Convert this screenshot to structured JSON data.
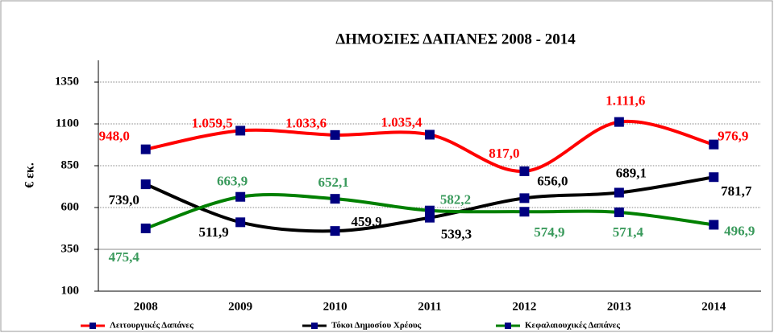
{
  "chart_data": {
    "type": "line",
    "title": "ΔΗΜΟΣΙΕΣ ΔΑΠΑΝΕΣ  2008 - 2014",
    "y_label": "€ εκ.",
    "categories": [
      "2008",
      "2009",
      "2010",
      "2011",
      "2012",
      "2013",
      "2014"
    ],
    "series": [
      {
        "name": "Λειτουργικές Δαπάνες",
        "color": "#ff0000",
        "label_color": "#ff0000",
        "values": [
          948.0,
          1059.5,
          1033.6,
          1035.4,
          817.0,
          1111.6,
          976.9
        ],
        "value_labels": [
          "948,0",
          "1.059,5",
          "1.033,6",
          "1.035,4",
          "817,0",
          "1.111,6",
          "976,9"
        ]
      },
      {
        "name": "Τόκοι Δημοσίου Χρέους",
        "color": "#000000",
        "label_color": "#000000",
        "values": [
          739.0,
          511.9,
          459.9,
          539.3,
          656.0,
          689.1,
          781.7
        ],
        "value_labels": [
          "739,0",
          "511,9",
          "459,9",
          "539,3",
          "656,0",
          "689,1",
          "781,7"
        ]
      },
      {
        "name": "Κεφαλαιουχικές Δαπάνες",
        "color": "#008000",
        "label_color": "#3a9a5c",
        "values": [
          475.4,
          663.9,
          652.1,
          582.2,
          574.9,
          571.4,
          496.9
        ],
        "value_labels": [
          "475,4",
          "663,9",
          "652,1",
          "582,2",
          "574,9",
          "571,4",
          "496,9"
        ]
      }
    ],
    "marker_color": "#000080",
    "ylim": [
      100,
      1480
    ],
    "yticks": [
      100,
      350,
      600,
      850,
      1100,
      1350
    ],
    "grid": true,
    "legend": "bottom"
  }
}
